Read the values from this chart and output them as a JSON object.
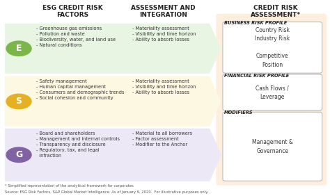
{
  "title_left": "ESG CREDIT RISK\nFACTORS",
  "title_mid": "ASSESSMENT AND\nINTEGRATION",
  "title_right": "CREDIT RISK\nASSESSMENT*",
  "bg_color": "#ffffff",
  "e_color": "#e8f5e2",
  "s_color": "#fdf8e1",
  "g_color": "#ede8f5",
  "right_bg": "#fdeede",
  "e_circle": "#7ab648",
  "s_circle": "#e5b023",
  "g_circle": "#8063a3",
  "e_letter": "E",
  "s_letter": "S",
  "g_letter": "G",
  "e_factors": "- Greenhouse gas emissions\n- Pollution and waste\n- Biodiversity, water, and land use\n- Natural conditions",
  "s_factors": "- Safety management\n- Human capital management\n- Consumers and demographic trends\n- Social cohesion and community",
  "g_factors": "- Board and shareholders\n- Management and internal controls\n- Transparency and disclosure\n- Regulatory, tax, and legal\n  infraction",
  "e_assess": "- Materiality assessment\n- Visibility and time horizon\n- Ability to absorb losses",
  "s_assess": "- Materiality assessment\n- Visibility and time horizon\n- Ability to absorb losses",
  "g_assess": "- Material to all borrowers\n- Factor assessment\n- Modifier to the Anchor",
  "biz_label": "BUSINESS RISK PROFILE",
  "biz_box": "Country Risk\nIndustry Risk\n\nCompetitive\nPosition",
  "fin_label": "FINANCIAL RISK PROFILE",
  "fin_box": "Cash Flows /\nLeverage",
  "mod_label": "MODIFIERS",
  "mod_box": "Management &\nGovernance",
  "footnote1": "* Simplified representation of the analytical framework for corporates",
  "footnote2": "Source: ESG Risk Factors, S&P Global Market Intelligence. As of January 9, 2020.  For illustrative purposes only."
}
